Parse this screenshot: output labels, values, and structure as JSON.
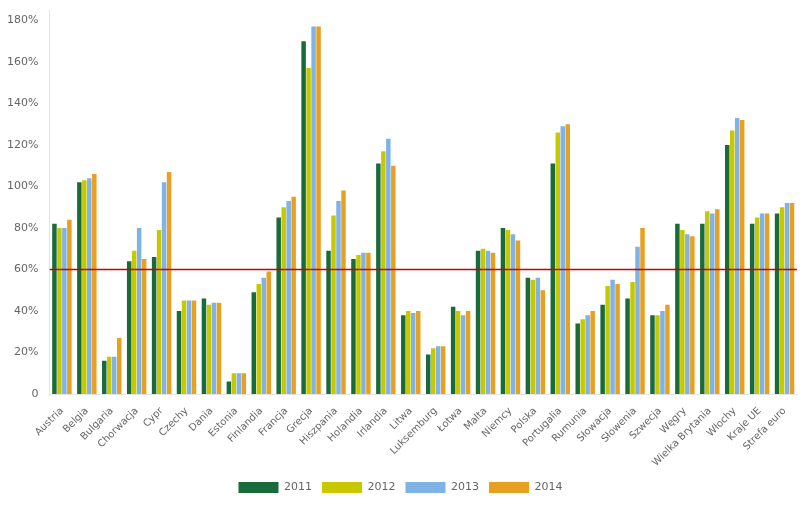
{
  "chart_data": {
    "type": "bar",
    "categories": [
      "Austria",
      "Belgia",
      "Bulgaria",
      "Chorwacja",
      "Cypr",
      "Czechy",
      "Dania",
      "Estonia",
      "Finlandia",
      "Francja",
      "Grecja",
      "Hiszpania",
      "Holandia",
      "Irlandia",
      "Litwa",
      "Luksemburg",
      "Łotwa",
      "Malta",
      "Niemcy",
      "Polska",
      "Portugalia",
      "Rumunia",
      "Słowacja",
      "Słowenia",
      "Szwecja",
      "Węgry",
      "Wielka Brytania",
      "Włochy",
      "Kraje UE",
      "Strefa euro"
    ],
    "series": [
      {
        "name": "2011",
        "color": "#1a6b3c",
        "values": [
          82,
          102,
          16,
          64,
          66,
          40,
          46,
          6,
          49,
          85,
          170,
          69,
          65,
          111,
          38,
          19,
          42,
          69,
          80,
          56,
          111,
          34,
          43,
          46,
          38,
          82,
          82,
          120,
          82,
          87
        ]
      },
      {
        "name": "2012",
        "color": "#c8c800",
        "values": [
          80,
          103,
          18,
          69,
          79,
          45,
          43,
          10,
          53,
          90,
          157,
          86,
          67,
          117,
          40,
          22,
          40,
          70,
          79,
          55,
          126,
          36,
          52,
          54,
          38,
          79,
          88,
          127,
          85,
          90
        ]
      },
      {
        "name": "2013",
        "color": "#7fb2e5",
        "values": [
          80,
          104,
          18,
          80,
          102,
          45,
          44,
          10,
          56,
          93,
          177,
          93,
          68,
          123,
          39,
          23,
          38,
          69,
          77,
          56,
          129,
          38,
          55,
          71,
          40,
          77,
          87,
          133,
          87,
          92
        ]
      },
      {
        "name": "2014",
        "color": "#e8a020",
        "values": [
          84,
          106,
          27,
          65,
          107,
          45,
          44,
          10,
          59,
          95,
          177,
          98,
          68,
          110,
          40,
          23,
          40,
          68,
          74,
          50,
          130,
          40,
          53,
          80,
          43,
          76,
          89,
          132,
          87,
          92
        ]
      }
    ],
    "reference_lines": [
      {
        "value": 60,
        "color": "#cc0000"
      }
    ],
    "ylim": [
      0,
      185
    ],
    "yticks": [
      0,
      {
        "value": 20,
        "label": "20%"
      },
      {
        "value": 40,
        "label": "40%"
      },
      {
        "value": 60,
        "label": "60%"
      },
      {
        "value": 80,
        "label": "80%"
      },
      {
        "value": 100,
        "label": "100%"
      },
      {
        "value": 120,
        "label": "120%"
      },
      {
        "value": 140,
        "label": "140%"
      },
      {
        "value": 160,
        "label": "160%"
      },
      {
        "value": 180,
        "label": "180%"
      }
    ],
    "grid": false,
    "legend": "bottom"
  }
}
